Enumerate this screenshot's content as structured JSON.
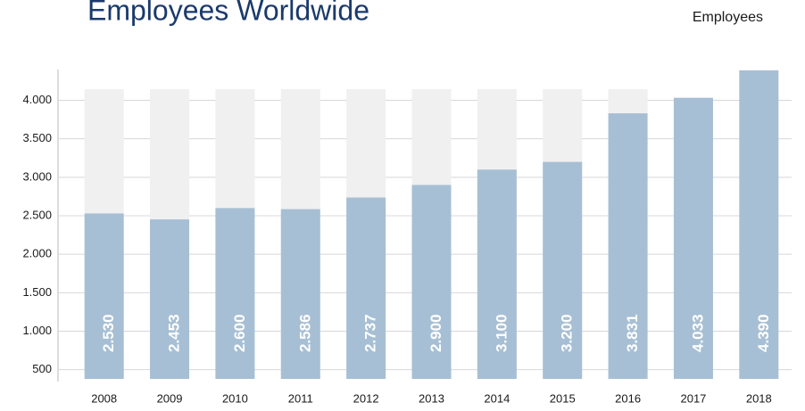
{
  "chart_data": {
    "type": "bar",
    "title": "Employees Worldwide",
    "legend": "Employees",
    "categories": [
      "2008",
      "2009",
      "2010",
      "2011",
      "2012",
      "2013",
      "2014",
      "2015",
      "2016",
      "2017",
      "2018"
    ],
    "values": [
      2530,
      2453,
      2600,
      2586,
      2737,
      2900,
      3100,
      3200,
      3831,
      4033,
      4390
    ],
    "value_labels": [
      "2.530",
      "2.453",
      "2.600",
      "2.586",
      "2.737",
      "2.900",
      "3.100",
      "3.200",
      "3.831",
      "4.033",
      "4.390"
    ],
    "color": "#a7bfd4",
    "ylim": [
      380,
      4400
    ],
    "yticks": [
      {
        "value": 500,
        "label": "500"
      },
      {
        "value": 1000,
        "label": "1.000"
      },
      {
        "value": 1500,
        "label": "1.500"
      },
      {
        "value": 2000,
        "label": "2.000"
      },
      {
        "value": 2500,
        "label": "2.500"
      },
      {
        "value": 3000,
        "label": "3.000"
      },
      {
        "value": 3500,
        "label": "3.500"
      },
      {
        "value": 4000,
        "label": "4.000"
      }
    ],
    "grid": true
  }
}
